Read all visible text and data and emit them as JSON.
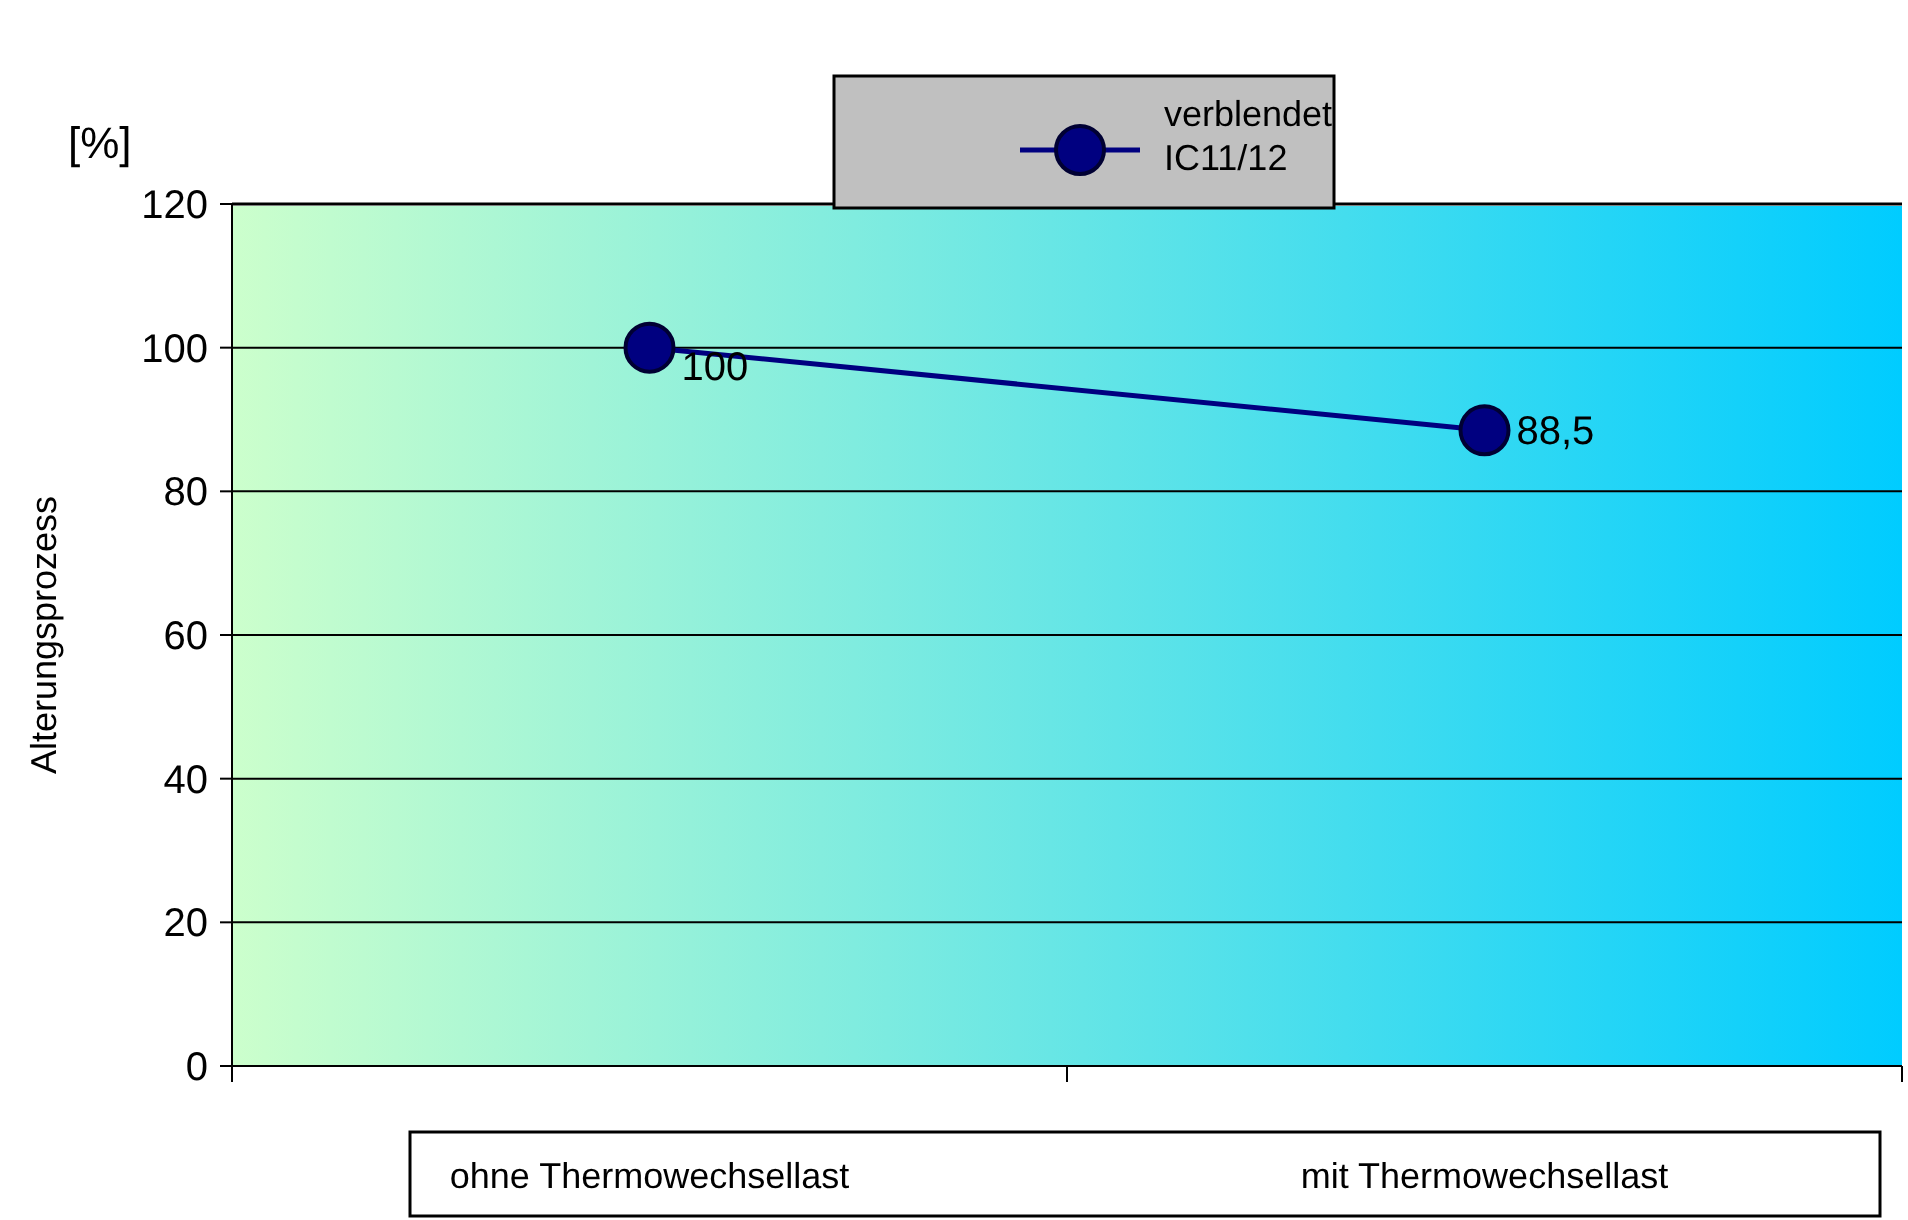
{
  "chart_data": {
    "type": "line",
    "ylabel": "Alterungsprozess",
    "annotations": [
      "[%]"
    ],
    "categories": [
      "ohne Thermowechsellast",
      "mit Thermowechsellast"
    ],
    "series": [
      {
        "name": "verblendet IC11/12",
        "color": "#000080",
        "values": [
          100,
          88.5
        ],
        "value_labels": [
          "100",
          "88,5"
        ]
      }
    ],
    "ylim": [
      0,
      120
    ],
    "yticks": [
      0,
      20,
      40,
      60,
      80,
      100,
      120
    ],
    "grid": "y",
    "legend": "top",
    "marker": "circle",
    "line_style": "solid"
  }
}
